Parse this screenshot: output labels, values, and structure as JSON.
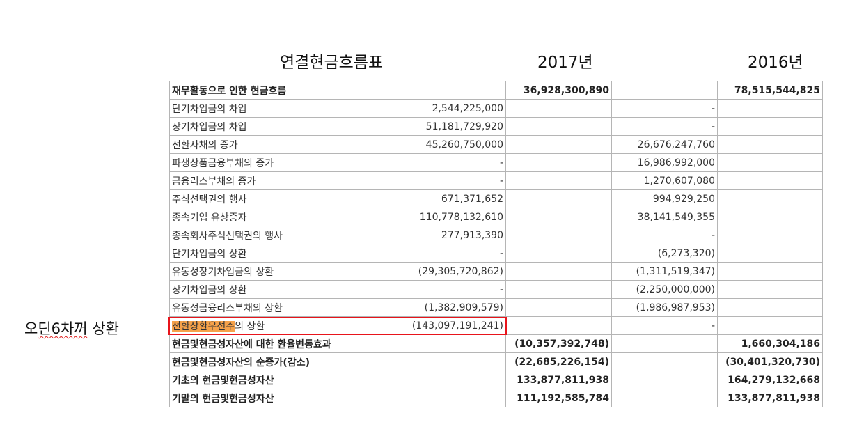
{
  "header": {
    "title": "연결현금흐름표",
    "year1": "2017년",
    "year2": "2016년"
  },
  "side_note": {
    "prefix": "오",
    "underlined": "딘6차꺼",
    "suffix": " 상환"
  },
  "highlight": {
    "marked": "전환상환우선주",
    "rest": "의 상환"
  },
  "rows": [
    {
      "label": "재무활동으로 인한 현금흐름",
      "c1": "",
      "c2": "36,928,300,890",
      "c3": "",
      "c4": "78,515,544,825",
      "bold": true
    },
    {
      "label": "단기차입금의 차입",
      "c1": "2,544,225,000",
      "c2": "",
      "c3": "-",
      "c4": "",
      "bold": false
    },
    {
      "label": "장기차입금의 차입",
      "c1": "51,181,729,920",
      "c2": "",
      "c3": "-",
      "c4": "",
      "bold": false
    },
    {
      "label": "전환사채의 증가",
      "c1": "45,260,750,000",
      "c2": "",
      "c3": "26,676,247,760",
      "c4": "",
      "bold": false
    },
    {
      "label": "파생상품금융부채의 증가",
      "c1": "-",
      "c2": "",
      "c3": "16,986,992,000",
      "c4": "",
      "bold": false
    },
    {
      "label": "금융리스부채의 증가",
      "c1": "-",
      "c2": "",
      "c3": "1,270,607,080",
      "c4": "",
      "bold": false
    },
    {
      "label": "주식선택권의 행사",
      "c1": "671,371,652",
      "c2": "",
      "c3": "994,929,250",
      "c4": "",
      "bold": false
    },
    {
      "label": "종속기업 유상증자",
      "c1": "110,778,132,610",
      "c2": "",
      "c3": "38,141,549,355",
      "c4": "",
      "bold": false
    },
    {
      "label": "종속회사주식선택권의 행사",
      "c1": "277,913,390",
      "c2": "",
      "c3": "-",
      "c4": "",
      "bold": false
    },
    {
      "label": "단기차입금의 상환",
      "c1": "-",
      "c2": "",
      "c3": "(6,273,320)",
      "c4": "",
      "bold": false
    },
    {
      "label": "유동성장기차입금의 상환",
      "c1": "(29,305,720,862)",
      "c2": "",
      "c3": "(1,311,519,347)",
      "c4": "",
      "bold": false
    },
    {
      "label": "장기차입금의 상환",
      "c1": "-",
      "c2": "",
      "c3": "(2,250,000,000)",
      "c4": "",
      "bold": false
    },
    {
      "label": "유동성금융리스부채의 상환",
      "c1": "(1,382,909,579)",
      "c2": "",
      "c3": "(1,986,987,953)",
      "c4": "",
      "bold": false
    },
    {
      "label": "",
      "c1": "(143,097,191,241)",
      "c2": "",
      "c3": "-",
      "c4": "",
      "bold": false,
      "highlighted": true
    },
    {
      "label": "현금및현금성자산에 대한 환율변동효과",
      "c1": "",
      "c2": "(10,357,392,748)",
      "c3": "",
      "c4": "1,660,304,186",
      "bold": true
    },
    {
      "label": "현금및현금성자산의 순증가(감소)",
      "c1": "",
      "c2": "(22,685,226,154)",
      "c3": "",
      "c4": "(30,401,320,730)",
      "bold": true
    },
    {
      "label": "기초의 현금및현금성자산",
      "c1": "",
      "c2": "133,877,811,938",
      "c3": "",
      "c4": "164,279,132,668",
      "bold": true
    },
    {
      "label": "기말의 현금및현금성자산",
      "c1": "",
      "c2": "111,192,585,784",
      "c3": "",
      "c4": "133,877,811,938",
      "bold": true
    }
  ]
}
